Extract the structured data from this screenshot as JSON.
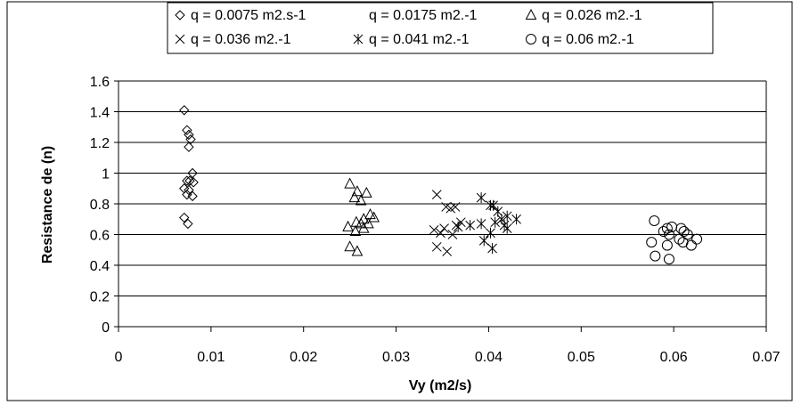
{
  "chart_data": {
    "type": "scatter",
    "title": "",
    "xlabel": "Vy (m2/s)",
    "ylabel": "Resistance de (n)",
    "xlim": [
      0,
      0.07
    ],
    "ylim": [
      0,
      1.6
    ],
    "xticks": [
      0,
      0.01,
      0.02,
      0.03,
      0.04,
      0.05,
      0.06,
      0.07
    ],
    "xtick_labels": [
      "0",
      "0.01",
      "0.02",
      "0.03",
      "0.04",
      "0.05",
      "0.06",
      "0.07"
    ],
    "yticks": [
      0,
      0.2,
      0.4,
      0.6,
      0.8,
      1,
      1.2,
      1.4,
      1.6
    ],
    "ytick_labels": [
      "0",
      "0.2",
      "0.4",
      "0.6",
      "0.8",
      "1",
      "1.2",
      "1.4",
      "1.6"
    ],
    "grid": "horizontal",
    "legend_position": "top",
    "series": [
      {
        "name": "q = 0.0075 m2.s-1",
        "marker": "diamond",
        "points": [
          [
            0.0071,
            1.41
          ],
          [
            0.0074,
            1.28
          ],
          [
            0.0076,
            1.25
          ],
          [
            0.0078,
            1.22
          ],
          [
            0.0076,
            1.17
          ],
          [
            0.008,
            1.0
          ],
          [
            0.0074,
            0.95
          ],
          [
            0.0077,
            0.95
          ],
          [
            0.0081,
            0.94
          ],
          [
            0.0071,
            0.9
          ],
          [
            0.0076,
            0.89
          ],
          [
            0.0074,
            0.86
          ],
          [
            0.008,
            0.85
          ],
          [
            0.0071,
            0.71
          ],
          [
            0.0075,
            0.67
          ]
        ]
      },
      {
        "name": "q = 0.0175 m2.-1",
        "marker": "none",
        "points": []
      },
      {
        "name": "q = 0.026 m2.-1",
        "marker": "triangle",
        "points": [
          [
            0.025,
            0.93
          ],
          [
            0.0258,
            0.88
          ],
          [
            0.0268,
            0.87
          ],
          [
            0.0255,
            0.84
          ],
          [
            0.0262,
            0.82
          ],
          [
            0.0272,
            0.73
          ],
          [
            0.0276,
            0.71
          ],
          [
            0.0265,
            0.7
          ],
          [
            0.0257,
            0.68
          ],
          [
            0.0262,
            0.67
          ],
          [
            0.027,
            0.67
          ],
          [
            0.0248,
            0.65
          ],
          [
            0.0265,
            0.64
          ],
          [
            0.0256,
            0.62
          ],
          [
            0.025,
            0.52
          ],
          [
            0.0258,
            0.49
          ]
        ]
      },
      {
        "name": "q = 0.036 m2.-1",
        "marker": "x",
        "points": [
          [
            0.0344,
            0.86
          ],
          [
            0.0354,
            0.78
          ],
          [
            0.0364,
            0.78
          ],
          [
            0.0359,
            0.77
          ],
          [
            0.0352,
            0.64
          ],
          [
            0.0341,
            0.63
          ],
          [
            0.0361,
            0.6
          ],
          [
            0.0348,
            0.61
          ],
          [
            0.0344,
            0.52
          ],
          [
            0.0355,
            0.49
          ],
          [
            0.037,
            0.68
          ],
          [
            0.0365,
            0.66
          ]
        ]
      },
      {
        "name": "q = 0.041 m2.-1",
        "marker": "asterisk",
        "points": [
          [
            0.0392,
            0.84
          ],
          [
            0.0402,
            0.79
          ],
          [
            0.0405,
            0.79
          ],
          [
            0.041,
            0.75
          ],
          [
            0.0414,
            0.7
          ],
          [
            0.042,
            0.72
          ],
          [
            0.043,
            0.7
          ],
          [
            0.0407,
            0.68
          ],
          [
            0.038,
            0.66
          ],
          [
            0.0392,
            0.67
          ],
          [
            0.0367,
            0.65
          ],
          [
            0.0402,
            0.61
          ],
          [
            0.042,
            0.64
          ],
          [
            0.0395,
            0.56
          ],
          [
            0.0404,
            0.51
          ],
          [
            0.0417,
            0.66
          ]
        ]
      },
      {
        "name": "q = 0.06 m2.-1",
        "marker": "circle",
        "points": [
          [
            0.0579,
            0.69
          ],
          [
            0.0593,
            0.64
          ],
          [
            0.0598,
            0.65
          ],
          [
            0.0608,
            0.64
          ],
          [
            0.0611,
            0.62
          ],
          [
            0.0589,
            0.62
          ],
          [
            0.0595,
            0.6
          ],
          [
            0.0615,
            0.6
          ],
          [
            0.0606,
            0.57
          ],
          [
            0.0625,
            0.57
          ],
          [
            0.061,
            0.55
          ],
          [
            0.0576,
            0.55
          ],
          [
            0.0593,
            0.53
          ],
          [
            0.0619,
            0.53
          ],
          [
            0.058,
            0.46
          ],
          [
            0.0595,
            0.44
          ]
        ]
      }
    ]
  }
}
